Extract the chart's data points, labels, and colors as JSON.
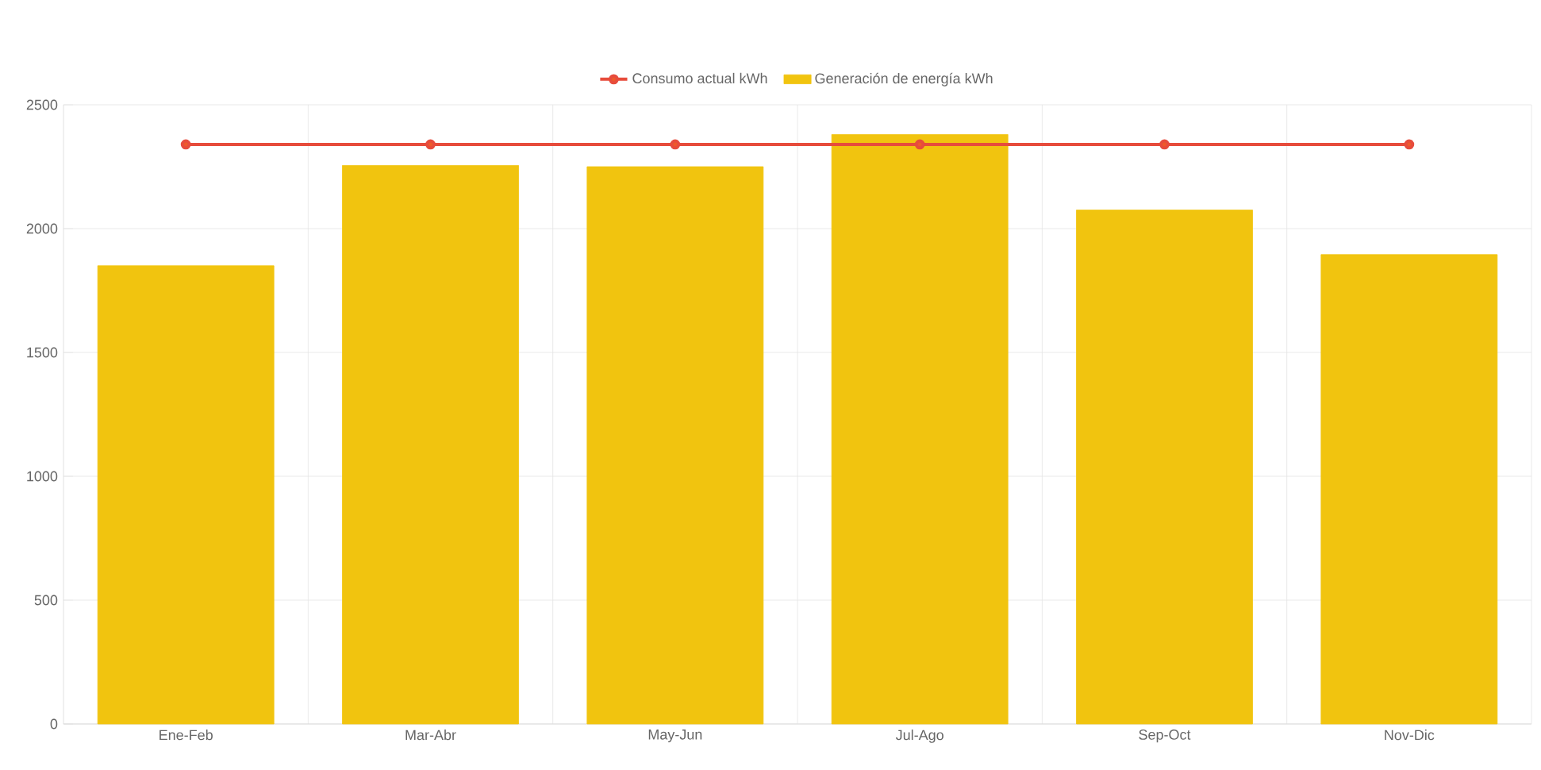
{
  "chart_data": {
    "type": "bar",
    "categories": [
      "Ene-Feb",
      "Mar-Abr",
      "May-Jun",
      "Jul-Ago",
      "Sep-Oct",
      "Nov-Dic"
    ],
    "series": [
      {
        "name": "Consumo actual kWh",
        "type": "line",
        "color": "#e74c3c",
        "marker": "circle",
        "values": [
          2340,
          2340,
          2340,
          2340,
          2340,
          2340
        ]
      },
      {
        "name": "Generación de energía kWh",
        "color": "#f1c40f",
        "values": [
          1850,
          2255,
          2250,
          2380,
          2075,
          1895
        ]
      }
    ],
    "ylim": [
      0,
      2500
    ],
    "yticks": [
      0,
      500,
      1000,
      1500,
      2000,
      2500
    ],
    "grid": true,
    "legend": "top"
  }
}
